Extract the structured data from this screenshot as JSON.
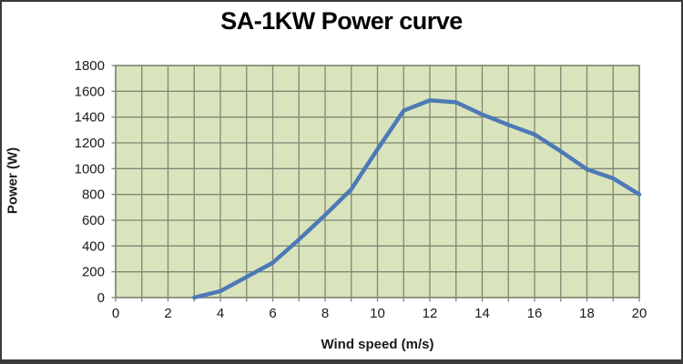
{
  "chart_data": {
    "type": "line",
    "title": "SA-1KW Power curve",
    "xlabel": "Wind speed (m/s)",
    "ylabel": "Power (W)",
    "x": [
      3,
      4,
      5,
      6,
      7,
      8,
      9,
      10,
      11,
      12,
      13,
      14,
      15,
      16,
      17,
      18,
      19,
      20
    ],
    "values": [
      0,
      50,
      160,
      270,
      450,
      640,
      840,
      1150,
      1450,
      1530,
      1515,
      1420,
      1340,
      1265,
      1135,
      995,
      925,
      800
    ],
    "xlim": [
      0,
      20
    ],
    "ylim": [
      0,
      1800
    ],
    "x_minor_tick_step": 1,
    "x_label_step": 2,
    "y_tick_step": 200,
    "grid": "both-major-and-x-minor",
    "legend": "none",
    "colors": {
      "line": "#4d79b5",
      "plot_bg": "#d9e4bd",
      "gridline": "#7f8772",
      "text": "#1a1a1a",
      "frame_border": "#3b3b3b",
      "page_bg": "#ffffff"
    }
  }
}
